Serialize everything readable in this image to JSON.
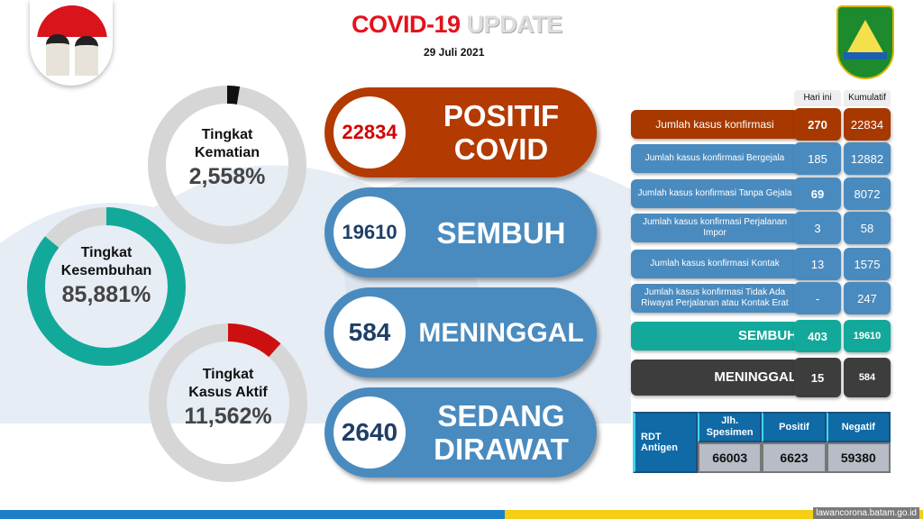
{
  "header": {
    "title_red": "COVID-19",
    "title_grey": "UPDATE",
    "date": "29 Juli 2021"
  },
  "logos": {
    "left": "portrait-logo",
    "right": "batam-emblem",
    "right_text": "BATAM"
  },
  "rates": [
    {
      "label1": "Tingkat",
      "label2": "Kematian",
      "value": "2,558%",
      "percent": 2.558,
      "color": "#111111"
    },
    {
      "label1": "Tingkat",
      "label2": "Kesembuhan",
      "value": "85,881%",
      "percent": 85.881,
      "color": "#12a99a"
    },
    {
      "label1": "Tingkat",
      "label2": "Kasus Aktif",
      "value": "11,562%",
      "percent": 11.562,
      "color": "#cc1010"
    }
  ],
  "summary": [
    {
      "value": "22834",
      "label1": "POSITIF",
      "label2": "COVID",
      "color": "#b33a00",
      "num_color": "#d40000"
    },
    {
      "value": "19610",
      "label1": "SEMBUH",
      "label2": "",
      "color": "#4a8bbf",
      "num_color": "#1e3f66"
    },
    {
      "value": "584",
      "label1": "MENINGGAL",
      "label2": "",
      "color": "#4a8bbf",
      "num_color": "#1e3f66"
    },
    {
      "value": "2640",
      "label1": "SEDANG",
      "label2": "DIRAWAT",
      "color": "#4a8bbf",
      "num_color": "#1e3f66"
    }
  ],
  "table": {
    "col_today": "Hari ini",
    "col_total": "Kumulatif",
    "rows": [
      {
        "label": "Jumlah kasus konfirmasi",
        "today": "270",
        "total": "22834",
        "color": "#a73800"
      },
      {
        "label": "Jumlah kasus konfirmasi Bergejala",
        "today": "185",
        "total": "12882",
        "color": "#4a8bbf"
      },
      {
        "label": "Jumlah kasus konfirmasi Tanpa Gejala",
        "today": "69",
        "total": "8072",
        "color": "#4a8bbf"
      },
      {
        "label": "Jumlah kasus konfirmasi Perjalanan Impor",
        "today": "3",
        "total": "58",
        "color": "#4a8bbf"
      },
      {
        "label": "Jumlah kasus konfirmasi Kontak",
        "today": "13",
        "total": "1575",
        "color": "#4a8bbf"
      },
      {
        "label": "Jumlah kasus konfirmasi Tidak Ada Riwayat Perjalanan atau Kontak Erat",
        "today": "-",
        "total": "247",
        "color": "#4a8bbf"
      },
      {
        "label": "SEMBUH",
        "today": "403",
        "total": "19610",
        "color": "#12a99a"
      },
      {
        "label": "MENINGGAL",
        "today": "15",
        "total": "584",
        "color": "#3d3d3d"
      }
    ]
  },
  "rdt": {
    "title": "RDT Antigen",
    "headers": [
      "Jlh. Spesimen",
      "Positif",
      "Negatif"
    ],
    "values": [
      "66003",
      "6623",
      "59380"
    ]
  },
  "footer": {
    "url": "lawancorona.batam.go.id"
  }
}
